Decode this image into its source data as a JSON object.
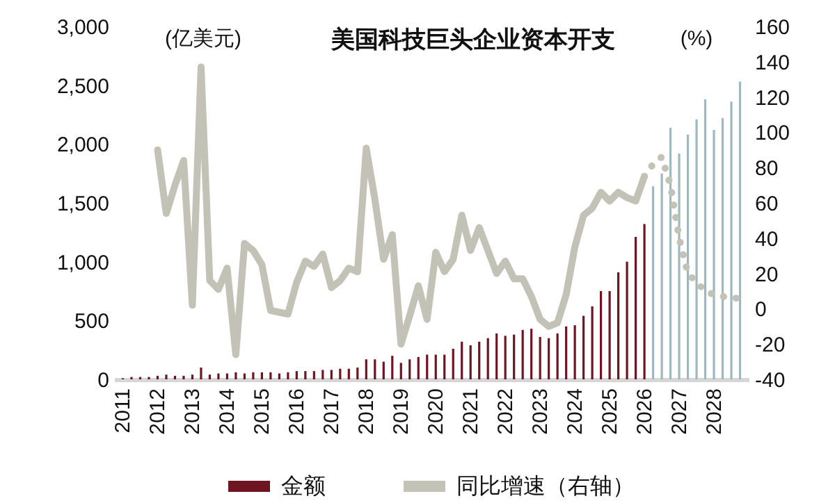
{
  "chart_data": {
    "type": "bar",
    "title": "美国科技巨头企业资本开支",
    "ylabel": "(亿美元)",
    "y2label": "(%)",
    "categories": [
      "2011",
      null,
      null,
      null,
      "2012",
      null,
      null,
      null,
      "2013",
      null,
      null,
      null,
      "2014",
      null,
      null,
      null,
      "2015",
      null,
      null,
      null,
      "2016",
      null,
      null,
      null,
      "2017",
      null,
      null,
      null,
      "2018",
      null,
      null,
      null,
      "2019",
      null,
      null,
      null,
      "2020",
      null,
      null,
      null,
      "2021",
      null,
      null,
      null,
      "2022",
      null,
      null,
      null,
      "2023",
      null,
      null,
      null,
      "2024",
      null,
      null,
      null,
      "2025",
      null,
      null,
      null,
      "2026",
      null,
      null,
      null,
      "2027",
      null,
      null,
      null,
      "2028",
      null,
      null,
      null
    ],
    "series": [
      {
        "name": "金额",
        "color": "#6e1423",
        "colors": [
          "#6e1423",
          "#6e1423",
          "#6e1423",
          "#6e1423",
          "#6e1423",
          "#6e1423",
          "#6e1423",
          "#6e1423",
          "#6e1423",
          "#6e1423",
          "#6e1423",
          "#6e1423",
          "#6e1423",
          "#6e1423",
          "#6e1423",
          "#6e1423",
          "#6e1423",
          "#6e1423",
          "#6e1423",
          "#6e1423",
          "#6e1423",
          "#6e1423",
          "#6e1423",
          "#6e1423",
          "#6e1423",
          "#6e1423",
          "#6e1423",
          "#6e1423",
          "#6e1423",
          "#6e1423",
          "#6e1423",
          "#6e1423",
          "#6e1423",
          "#6e1423",
          "#6e1423",
          "#6e1423",
          "#6e1423",
          "#6e1423",
          "#6e1423",
          "#6e1423",
          "#6e1423",
          "#6e1423",
          "#6e1423",
          "#6e1423",
          "#6e1423",
          "#6e1423",
          "#6e1423",
          "#6e1423",
          "#6e1423",
          "#6e1423",
          "#6e1423",
          "#6e1423",
          "#6e1423",
          "#6e1423",
          "#6e1423",
          "#6e1423",
          "#6e1423",
          "#6e1423",
          "#6e1423",
          "#6e1423",
          "#6e1423",
          "#9db8c0",
          "#9db8c0",
          "#9db8c0",
          "#9db8c0",
          "#9db8c0",
          "#9db8c0",
          "#9db8c0",
          "#9db8c0",
          "#9db8c0",
          "#9db8c0",
          "#9db8c0"
        ],
        "values": [
          10,
          20,
          20,
          20,
          30,
          40,
          30,
          30,
          40,
          100,
          40,
          50,
          50,
          60,
          50,
          60,
          60,
          60,
          50,
          60,
          70,
          70,
          70,
          80,
          80,
          90,
          90,
          100,
          170,
          170,
          150,
          200,
          140,
          170,
          190,
          210,
          210,
          210,
          260,
          320,
          290,
          320,
          350,
          390,
          370,
          380,
          420,
          430,
          360,
          350,
          390,
          450,
          460,
          540,
          620,
          750,
          750,
          910,
          1000,
          1210,
          1320,
          1640,
          1750,
          2140,
          1920,
          2080,
          2210,
          2380,
          2120,
          2220,
          2360,
          2530
        ]
      },
      {
        "name": "同比增速（右轴）",
        "type": "line",
        "axis": "y2",
        "color": "#c2c2b6",
        "line_style": "solid",
        "values": [
          null,
          null,
          null,
          null,
          90,
          54,
          70,
          84,
          2,
          137,
          16,
          11,
          23,
          -26,
          37,
          33,
          25,
          -1,
          -2,
          -3,
          15,
          27,
          24,
          31,
          12,
          16,
          23,
          21,
          91,
          62,
          28,
          42,
          -20,
          -4,
          13,
          -6,
          32,
          21,
          28,
          53,
          33,
          46,
          33,
          20,
          27,
          17,
          17,
          7,
          -6,
          -10,
          -8,
          8,
          35,
          53,
          57,
          66,
          61,
          66,
          63,
          61,
          75,
          null,
          null,
          null,
          null,
          null,
          null,
          null,
          null,
          null,
          null,
          null
        ]
      },
      {
        "type": "line",
        "axis": "y2",
        "color": "#c2c2b6",
        "line_style": "dotted",
        "values": [
          null,
          null,
          null,
          null,
          null,
          null,
          null,
          null,
          null,
          null,
          null,
          null,
          null,
          null,
          null,
          null,
          null,
          null,
          null,
          null,
          null,
          null,
          null,
          null,
          null,
          null,
          null,
          null,
          null,
          null,
          null,
          null,
          null,
          null,
          null,
          null,
          null,
          null,
          null,
          null,
          null,
          null,
          null,
          null,
          null,
          null,
          null,
          null,
          null,
          null,
          null,
          null,
          null,
          null,
          null,
          null,
          null,
          null,
          null,
          null,
          75,
          82,
          86,
          70,
          40,
          20,
          15,
          10,
          8,
          7,
          6,
          6
        ]
      }
    ],
    "ylim": [
      0,
      3000
    ],
    "yticks": [
      {
        "value": 0,
        "label": "0"
      },
      {
        "value": 500,
        "label": "500"
      },
      {
        "value": 1000,
        "label": "1,000"
      },
      {
        "value": 1500,
        "label": "1,500"
      },
      {
        "value": 2000,
        "label": "2,000"
      },
      {
        "value": 2500,
        "label": "2,500"
      },
      {
        "value": 3000,
        "label": "3,000"
      }
    ],
    "y2lim": [
      -40,
      160
    ],
    "y2ticks": [
      -40,
      -20,
      0,
      20,
      40,
      60,
      80,
      100,
      120,
      140,
      160
    ],
    "legend": "bottom"
  }
}
